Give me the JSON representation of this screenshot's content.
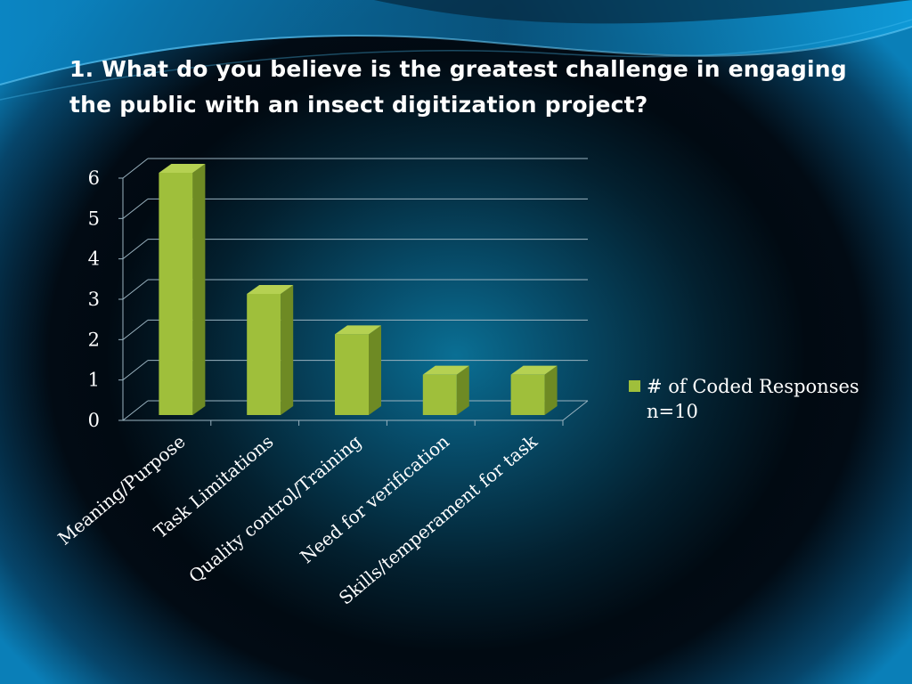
{
  "slide": {
    "title": "1. What do you believe is the greatest challenge in engaging the public with an insect digitization project?"
  },
  "colors": {
    "bar_front": "#9fbf3b",
    "bar_side": "#6e8a24",
    "bar_top": "#b5d152",
    "gridline": "#9ab3c0",
    "text": "#ffffff"
  },
  "chart_data": {
    "type": "bar",
    "categories": [
      "Meaning/Purpose",
      "Task Limitations",
      "Quality control/Training",
      "Need for verification",
      "Skills/temperament for task"
    ],
    "series": [
      {
        "name": "# of Coded Responses",
        "values": [
          6,
          3,
          2,
          1,
          1
        ]
      }
    ],
    "ylim": [
      0,
      6
    ],
    "yticks": [
      "0",
      "1",
      "2",
      "3",
      "4",
      "5",
      "6"
    ],
    "grid": true,
    "legend_position": "right",
    "legend_note": "n=10"
  }
}
